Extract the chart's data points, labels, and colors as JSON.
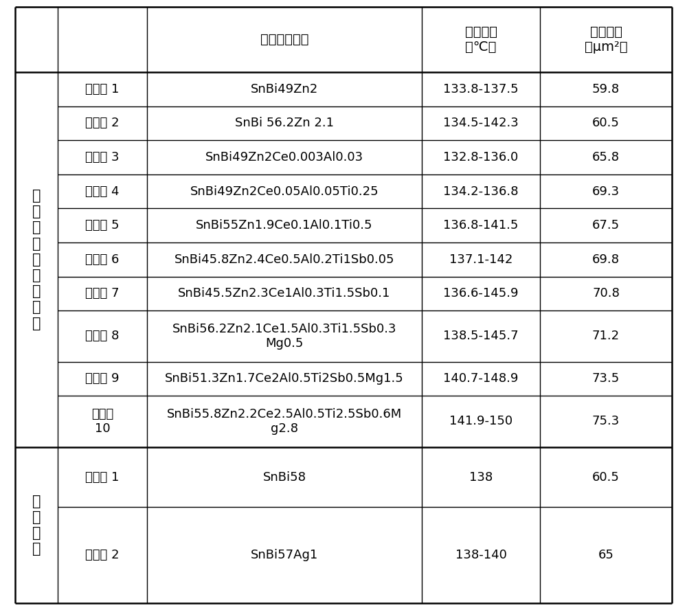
{
  "header_line1": [
    "",
    "",
    "焊料合金成分",
    "合金熳点",
    "铺展面积"
  ],
  "header_line2": [
    "",
    "",
    "",
    "（℃）",
    "（μm²）"
  ],
  "rows": [
    [
      "实施例 1",
      "SnBi49Zn2",
      "133.8-137.5",
      "59.8"
    ],
    [
      "实施例 2",
      "SnBi 56.2Zn 2.1",
      "134.5-142.3",
      "60.5"
    ],
    [
      "实施例 3",
      "SnBi49Zn2Ce0.003Al0.03",
      "132.8-136.0",
      "65.8"
    ],
    [
      "实施例 4",
      "SnBi49Zn2Ce0.05Al0.05Ti0.25",
      "134.2-136.8",
      "69.3"
    ],
    [
      "实施例 5",
      "SnBi55Zn1.9Ce0.1Al0.1Ti0.5",
      "136.8-141.5",
      "67.5"
    ],
    [
      "实施例 6",
      "SnBi45.8Zn2.4Ce0.5Al0.2Ti1Sb0.05",
      "137.1-142",
      "69.8"
    ],
    [
      "实施例 7",
      "SnBi45.5Zn2.3Ce1Al0.3Ti1.5Sb0.1",
      "136.6-145.9",
      "70.8"
    ],
    [
      "实施例 8",
      "SnBi56.2Zn2.1Ce1.5Al0.3Ti1.5Sb0.3\nMg0.5",
      "138.5-145.7",
      "71.2"
    ],
    [
      "实施例 9",
      "SnBi51.3Zn1.7Ce2Al0.5Ti2Sb0.5Mg1.5",
      "140.7-148.9",
      "73.5"
    ],
    [
      "实施例\n10",
      "SnBi55.8Zn2.2Ce2.5Al0.5Ti2.5Sb0.6M\ng2.8",
      "141.9-150",
      "75.3"
    ]
  ],
  "comp_rows": [
    [
      "对比例 1",
      "SnBi58",
      "138",
      "60.5"
    ],
    [
      "对比例 2",
      "SnBi57Ag1",
      "138-140",
      "65"
    ]
  ],
  "group1_chars": [
    "本",
    "发",
    "明",
    "焊",
    "料",
    "合",
    "金",
    "粉",
    "末"
  ],
  "group2_chars": [
    "对",
    "比",
    "焊",
    "料"
  ],
  "bg_color": "#ffffff",
  "line_color": "#000000",
  "font_size_header": 14,
  "font_size_body": 13,
  "font_size_group": 15
}
